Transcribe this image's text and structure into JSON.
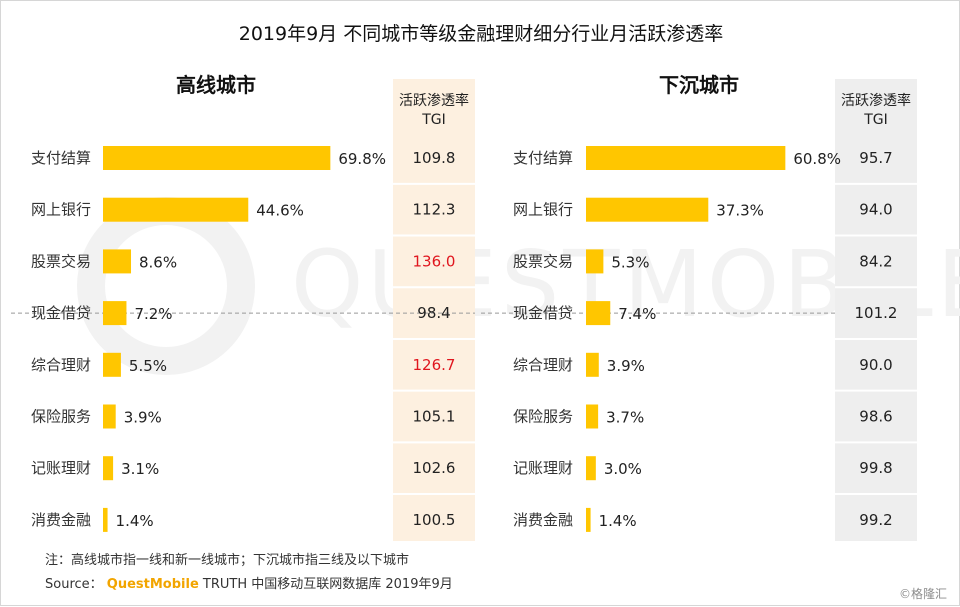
{
  "title": "2019年9月 不同城市等级金融理财细分行业月活跃渗透率",
  "note": "注：高线城市指一线和新一线城市；下沉城市指三线及以下城市",
  "source": {
    "label": "Source：",
    "brand": "QuestMobile",
    "rest": "TRUTH 中国移动互联网数据库 2019年9月"
  },
  "watermark": "QUESTMOBILE",
  "credit": "©格隆汇",
  "colors": {
    "bar": "#FFC600",
    "tgi_high_bg": "#FDF0E0",
    "tgi_low_bg": "#EEEEEE",
    "tgi_highlight": "#E0161E",
    "dashed_line": "#999999",
    "watermark": "#F2F2F2"
  },
  "chart_data": [
    {
      "type": "bar",
      "orientation": "horizontal",
      "title": "高线城市",
      "categories": [
        "支付结算",
        "网上银行",
        "股票交易",
        "现金借贷",
        "综合理财",
        "保险服务",
        "记账理财",
        "消费金融"
      ],
      "values": [
        69.8,
        44.6,
        8.6,
        7.2,
        5.5,
        3.9,
        3.1,
        1.4
      ],
      "value_labels": [
        "69.8%",
        "44.6%",
        "8.6%",
        "7.2%",
        "5.5%",
        "3.9%",
        "3.1%",
        "1.4%"
      ],
      "xlim": [
        0,
        70
      ],
      "tgi_header": [
        "活跃渗透率",
        "TGI"
      ],
      "tgi": [
        "109.8",
        "112.3",
        "136.0",
        "98.4",
        "126.7",
        "105.1",
        "102.6",
        "100.5"
      ],
      "tgi_highlight": [
        false,
        false,
        true,
        false,
        true,
        false,
        false,
        false
      ],
      "reference_row": "现金借贷"
    },
    {
      "type": "bar",
      "orientation": "horizontal",
      "title": "下沉城市",
      "categories": [
        "支付结算",
        "网上银行",
        "股票交易",
        "现金借贷",
        "综合理财",
        "保险服务",
        "记账理财",
        "消费金融"
      ],
      "values": [
        60.8,
        37.3,
        5.3,
        7.4,
        3.9,
        3.7,
        3.0,
        1.4
      ],
      "value_labels": [
        "60.8%",
        "37.3%",
        "5.3%",
        "7.4%",
        "3.9%",
        "3.7%",
        "3.0%",
        "1.4%"
      ],
      "xlim": [
        0,
        61
      ],
      "tgi_header": [
        "活跃渗透率",
        "TGI"
      ],
      "tgi": [
        "95.7",
        "94.0",
        "84.2",
        "101.2",
        "90.0",
        "98.6",
        "99.8",
        "99.2"
      ],
      "tgi_highlight": [
        false,
        false,
        false,
        false,
        false,
        false,
        false,
        false
      ],
      "reference_row": "现金借贷"
    }
  ]
}
